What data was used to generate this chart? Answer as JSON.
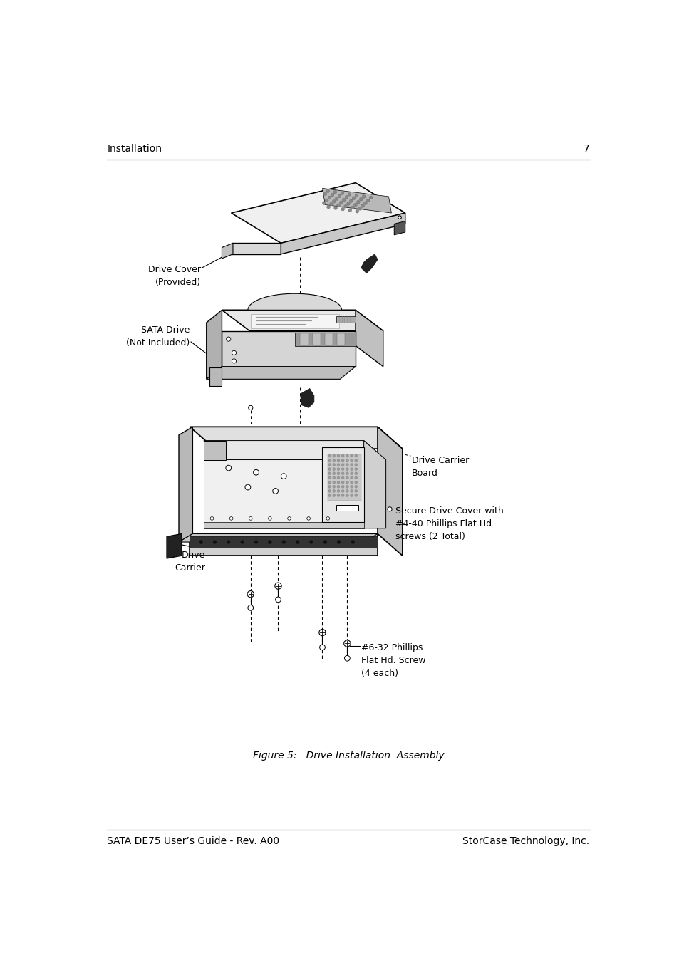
{
  "bg_color": "#ffffff",
  "header_text": "Installation",
  "header_page": "7",
  "footer_left": "SATA DE75 User’s Guide - Rev. A00",
  "footer_right": "StorCase Technology, Inc.",
  "figure_caption": "Figure 5:   Drive Installation  Assembly",
  "labels": {
    "drive_cover": "Drive Cover\n(Provided)",
    "sata_drive": "SATA Drive\n(Not Included)",
    "drive_carrier_board": "Drive Carrier\nBoard",
    "drive_carrier": "Drive\nCarrier",
    "secure_screws": "Secure Drive Cover with\n#4-40 Phillips Flat Hd.\nscrews (2 Total)",
    "flat_screw": "#6-32 Phillips\nFlat Hd. Screw\n(4 each)"
  },
  "font_family": "DejaVu Sans",
  "header_fontsize": 10,
  "footer_fontsize": 10,
  "label_fontsize": 9,
  "caption_fontsize": 10
}
